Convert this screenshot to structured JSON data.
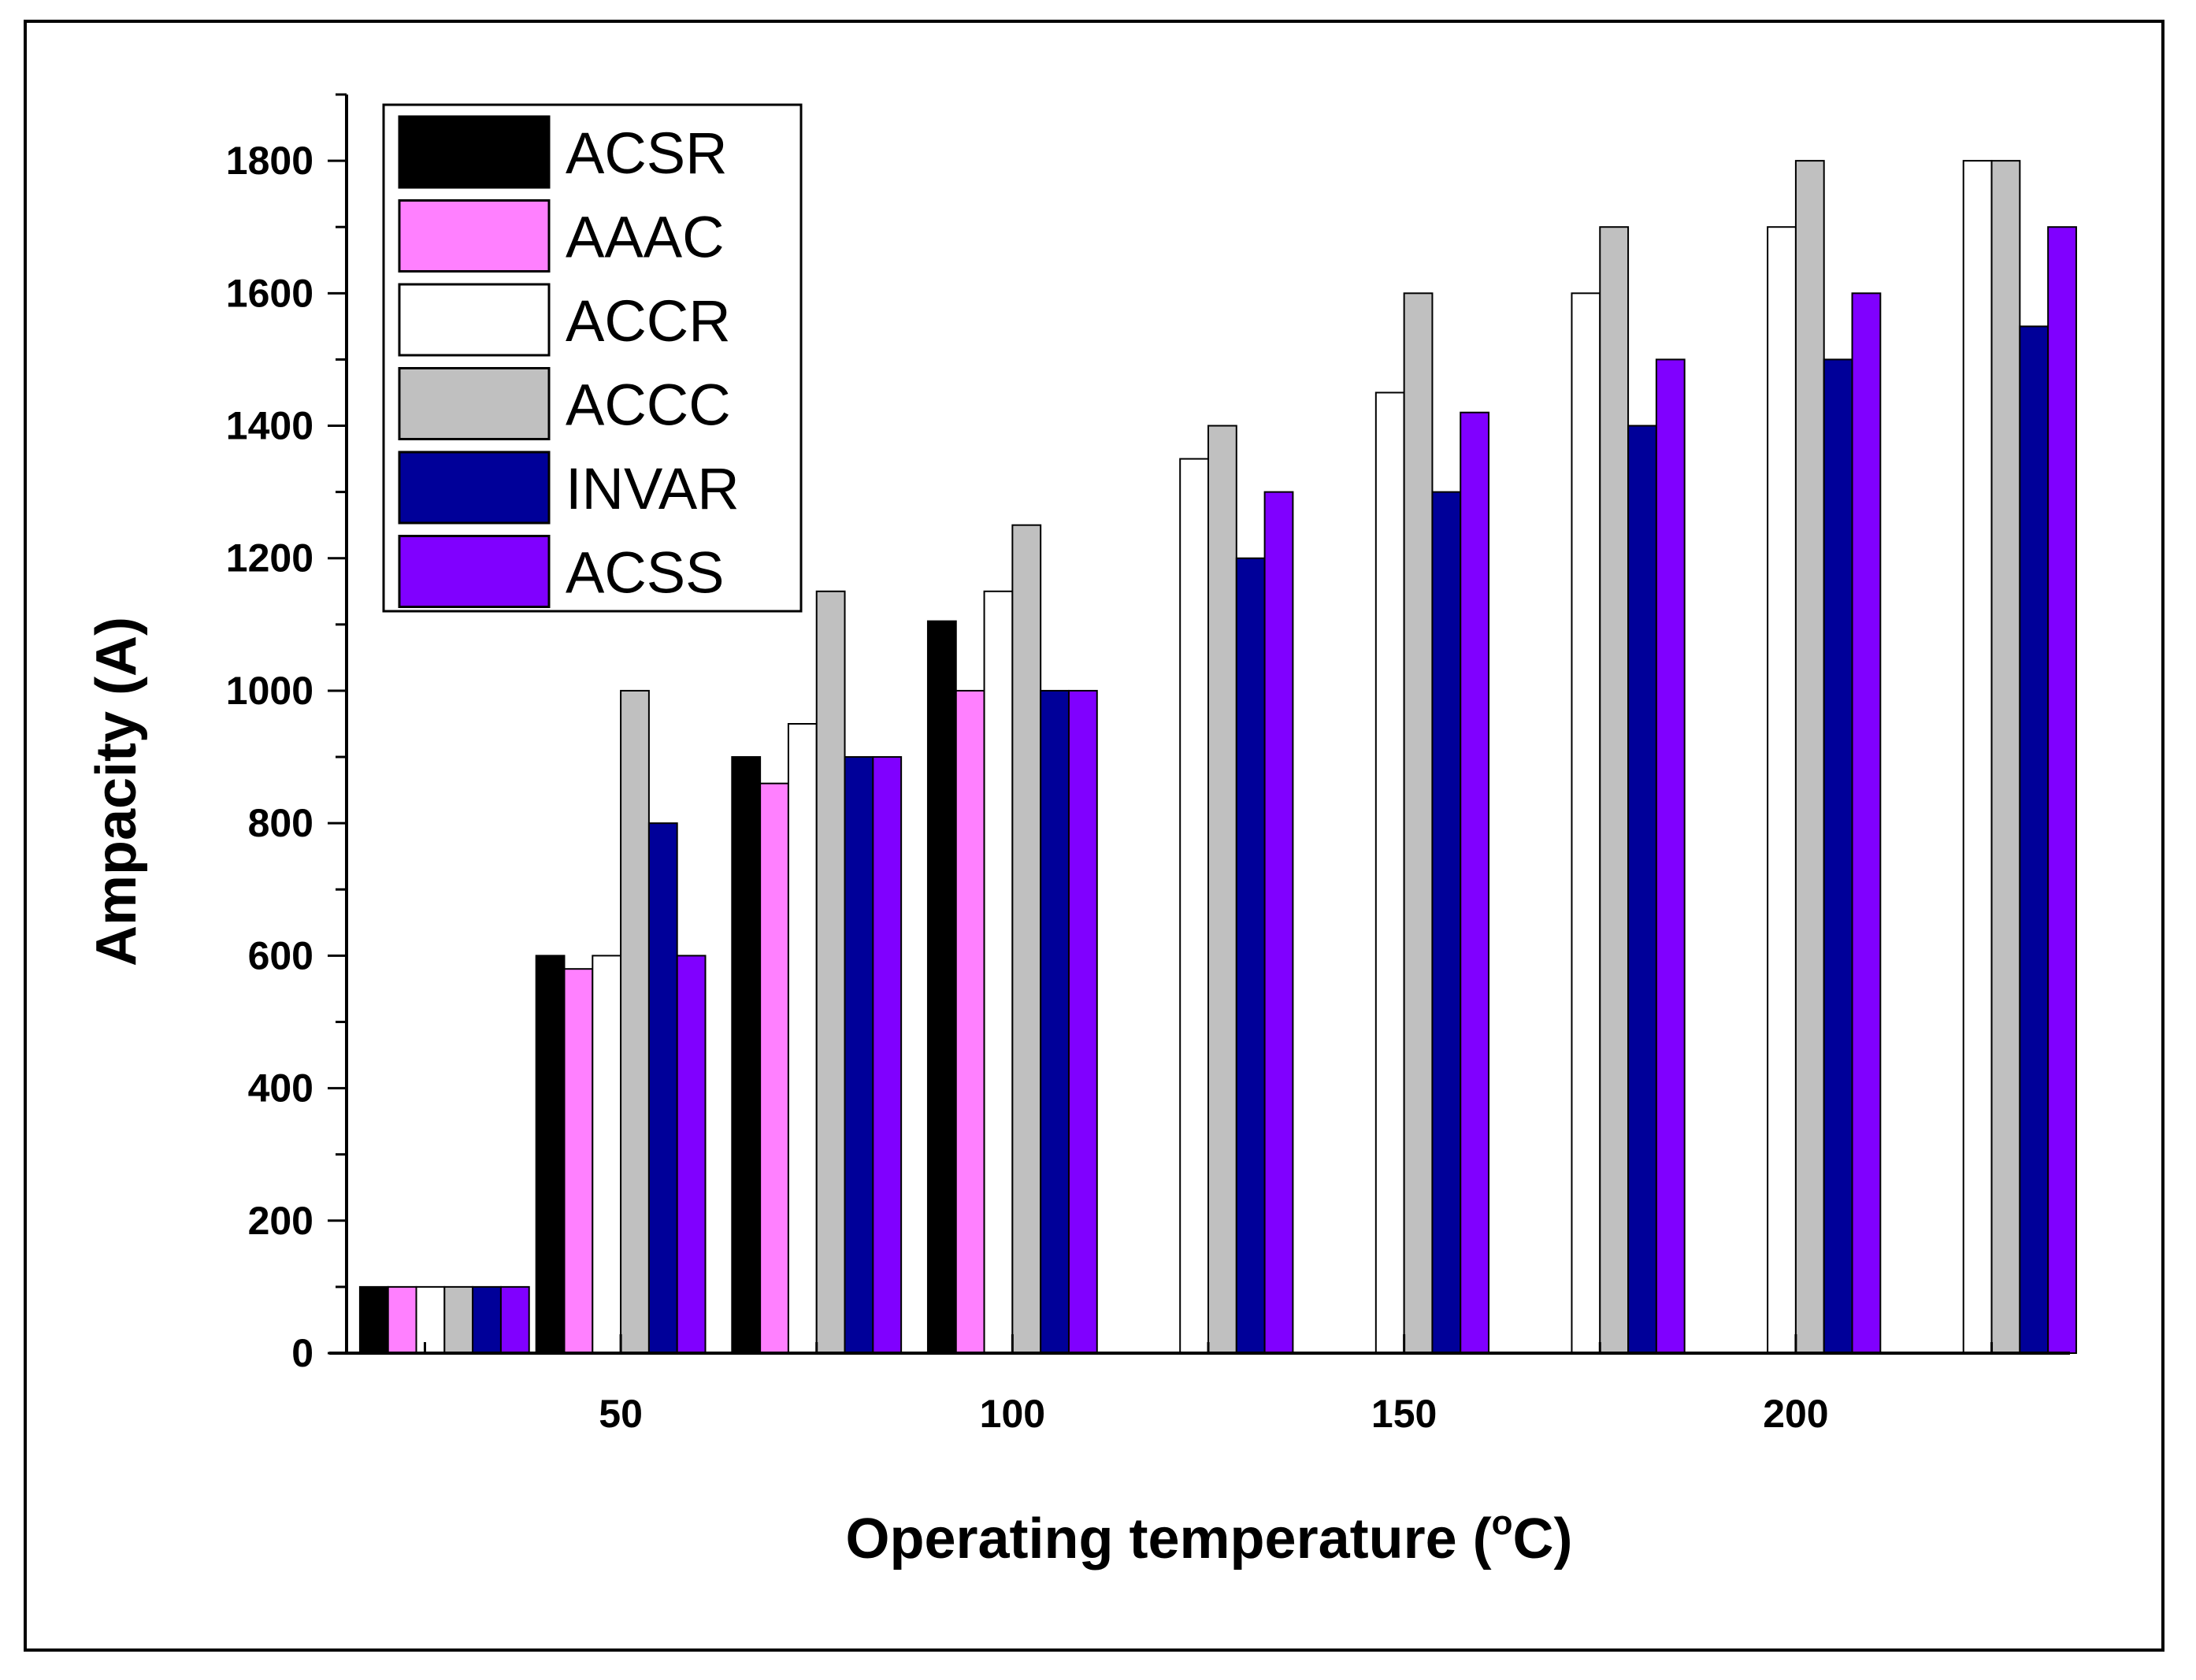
{
  "chart_data": {
    "type": "bar",
    "xlabel_main": "Operating temperature (",
    "xlabel_sup": "o",
    "xlabel_end": "C)",
    "ylabel": "Ampacity (A)",
    "ylim": [
      0,
      1900
    ],
    "xlim": [
      15,
      235
    ],
    "x_ticks": [
      50,
      100,
      150,
      200
    ],
    "y_ticks": [
      0,
      200,
      400,
      600,
      800,
      1000,
      1200,
      1400,
      1600,
      1800
    ],
    "groups": [
      {
        "center": 27.5,
        "values": [
          100,
          100,
          100,
          100,
          100,
          100
        ]
      },
      {
        "center": 50,
        "values": [
          600,
          580,
          600,
          1000,
          800,
          600
        ]
      },
      {
        "center": 75,
        "values": [
          900,
          860,
          950,
          1150,
          900,
          900
        ]
      },
      {
        "center": 100,
        "values": [
          1105,
          1000,
          1150,
          1250,
          1000,
          1000
        ]
      },
      {
        "center": 125,
        "values": [
          null,
          null,
          1350,
          1400,
          1200,
          1300
        ]
      },
      {
        "center": 150,
        "values": [
          null,
          null,
          1450,
          1600,
          1300,
          1420
        ]
      },
      {
        "center": 175,
        "values": [
          null,
          null,
          1600,
          1700,
          1400,
          1500
        ]
      },
      {
        "center": 200,
        "values": [
          null,
          null,
          1700,
          1800,
          1500,
          1600
        ]
      },
      {
        "center": 225,
        "values": [
          null,
          null,
          1800,
          1800,
          1550,
          1700
        ]
      }
    ],
    "series": [
      {
        "name": "ACSR",
        "color": "#000000"
      },
      {
        "name": "AAAC",
        "color": "#ff80ff"
      },
      {
        "name": "ACCR",
        "color": "#ffffff"
      },
      {
        "name": "ACCC",
        "color": "#c0c0c0"
      },
      {
        "name": "INVAR",
        "color": "#000099"
      },
      {
        "name": "ACSS",
        "color": "#8000ff"
      }
    ],
    "legend_position": "top-left"
  }
}
